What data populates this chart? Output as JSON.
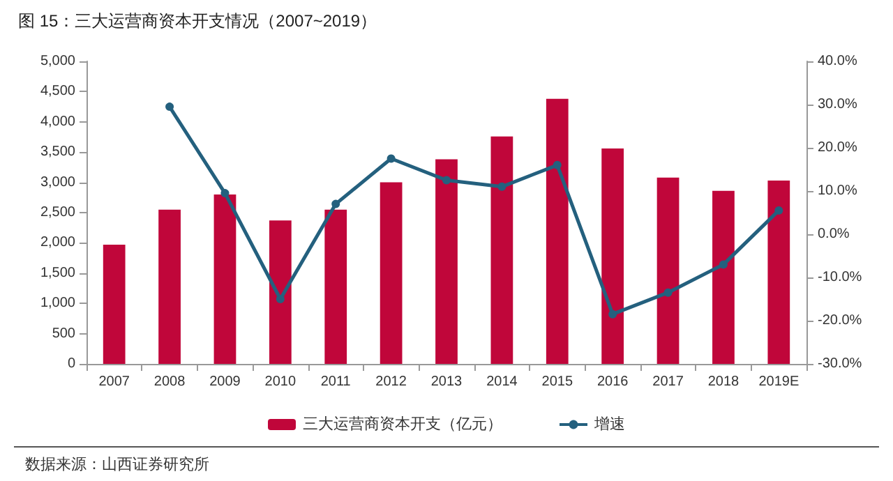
{
  "chart_data": {
    "type": "bar",
    "title": "图 15：三大运营商资本开支情况（2007~2019）",
    "categories": [
      "2007",
      "2008",
      "2009",
      "2010",
      "2011",
      "2012",
      "2013",
      "2014",
      "2015",
      "2016",
      "2017",
      "2018",
      "2019E"
    ],
    "series": [
      {
        "name": "三大运营商资本开支（亿元）",
        "color": "#c0063a",
        "values": [
          1970,
          2550,
          2800,
          2370,
          2550,
          3000,
          3380,
          3760,
          4380,
          3560,
          3080,
          2860,
          3030
        ]
      },
      {
        "name": "增速",
        "type": "line",
        "axis": "y2",
        "color": "#24607e",
        "marker": "circle",
        "values": [
          null,
          29.5,
          9.5,
          -15,
          7,
          17.5,
          12.5,
          11,
          16,
          -18.5,
          -13.5,
          -7,
          5.5
        ]
      }
    ],
    "ylim": [
      0,
      5000
    ],
    "yticks": [
      {
        "value": 0,
        "label": "0"
      },
      {
        "value": 500,
        "label": "500"
      },
      {
        "value": 1000,
        "label": "1,000"
      },
      {
        "value": 1500,
        "label": "1,500"
      },
      {
        "value": 2000,
        "label": "2,000"
      },
      {
        "value": 2500,
        "label": "2,500"
      },
      {
        "value": 3000,
        "label": "3,000"
      },
      {
        "value": 3500,
        "label": "3,500"
      },
      {
        "value": 4000,
        "label": "4,000"
      },
      {
        "value": 4500,
        "label": "4,500"
      },
      {
        "value": 5000,
        "label": "5,000"
      }
    ],
    "y2lim": [
      -30,
      40
    ],
    "y2ticks": [
      {
        "value": -30,
        "label": "-30.0%"
      },
      {
        "value": -20,
        "label": "-20.0%"
      },
      {
        "value": -10,
        "label": "-10.0%"
      },
      {
        "value": 0,
        "label": "0.0%"
      },
      {
        "value": 10,
        "label": "10.0%"
      },
      {
        "value": 20,
        "label": "20.0%"
      },
      {
        "value": 30,
        "label": "30.0%"
      },
      {
        "value": 40,
        "label": "40.0%"
      }
    ],
    "grid": false,
    "legend": "bottom",
    "annotations": [
      "数据来源：山西证券研究所"
    ]
  }
}
